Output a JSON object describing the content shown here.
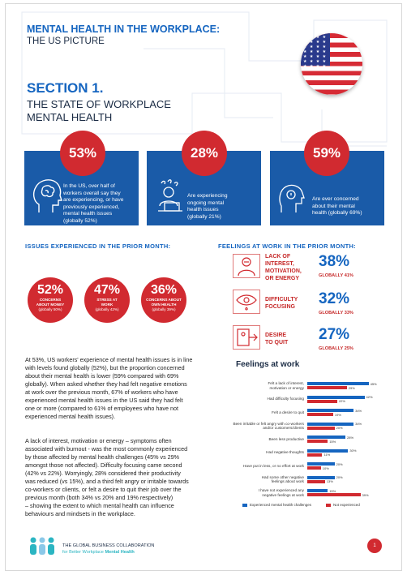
{
  "header": {
    "line1": "MENTAL HEALTH IN THE WORKPLACE:",
    "line2": "THE US PICTURE"
  },
  "section": {
    "title": "SECTION 1.",
    "subtitle_1": "THE STATE OF WORKPLACE",
    "subtitle_2": "MENTAL HEALTH"
  },
  "stats": [
    {
      "value": "53%",
      "lines": [
        "In the US, over half of",
        "workers overall say they",
        "are experiencing, or have",
        "previously experienced,",
        "mental health issues",
        "(globally 52%)"
      ]
    },
    {
      "value": "28%",
      "lines": [
        "Are experiencing",
        "ongoing mental",
        "health issues",
        "(globally 21%)"
      ]
    },
    {
      "value": "59%",
      "lines": [
        "Are ever concerned",
        "about their mental",
        "health (globally 69%)"
      ]
    }
  ],
  "issues": {
    "title": "ISSUES EXPERIENCED IN THE PRIOR MONTH:",
    "items": [
      {
        "value": "52%",
        "label_1": "CONCERNS",
        "label_2": "ABOUT MONEY",
        "global": "(globally 50%)"
      },
      {
        "value": "47%",
        "label_1": "STRESS AT",
        "label_2": "WORK",
        "global": "(globally 42%)"
      },
      {
        "value": "36%",
        "label_1": "CONCERNS ABOUT",
        "label_2": "OWN HEALTH",
        "global": "(globally 39%)"
      }
    ]
  },
  "feelings": {
    "title": "FEELINGS AT WORK IN THE PRIOR MONTH:",
    "items": [
      {
        "lines": [
          "LACK OF",
          "INTEREST,",
          "MOTIVATION,",
          "OR ENERGY"
        ],
        "value": "38%",
        "global": "GLOBALLY 41%",
        "icon": "person-icon"
      },
      {
        "lines": [
          "DIFFICULTY",
          "FOCUSING"
        ],
        "value": "32%",
        "global": "GLOBALLY 33%",
        "icon": "eye-icon"
      },
      {
        "lines": [
          "DESIRE",
          "TO QUIT"
        ],
        "value": "27%",
        "global": "GLOBALLY 25%",
        "icon": "quit-icon"
      }
    ]
  },
  "body": {
    "paragraph_1": [
      "At 53%, US workers' experience of mental health issues is in line",
      "with levels found globally (52%), but the proportion concerned",
      "about their mental health is lower (59% compared with 69%",
      "globally). When asked whether they had felt negative emotions",
      "at work over the previous month, 67% of workers who have",
      "experienced mental health issues in the US said they had felt",
      "one or more (compared to 61% of employees who have not",
      "experienced mental health issues)."
    ],
    "paragraph_2": [
      "A lack of interest, motivation or energy – symptoms often",
      "associated with burnout - was the most commonly experienced",
      "by those affected by mental health challenges (45% vs 29%",
      "amongst those not affected). Difficulty focusing came second",
      "(42% vs 22%). Worryingly, 28% considered their productivity",
      "was reduced (vs 15%), and a third felt angry or irritable towards",
      "co-workers or clients, or felt a desire to quit their job over the",
      "previous month (both 34% vs 20% and 19% respectively)",
      "– showing the extent to which mental health can influence",
      "behaviours and mindsets in the workplace."
    ]
  },
  "chart_data": {
    "type": "bar",
    "title": "Feelings at work",
    "categories": [
      [
        "Felt a lack of interest,",
        "motivation or energy"
      ],
      [
        "Had difficulty focusing"
      ],
      [
        "Felt a desire to quit"
      ],
      [
        "Been irritable or felt angry with co-workers",
        "and/or customers/clients"
      ],
      [
        "Been less productive"
      ],
      [
        "Had negative thoughts"
      ],
      [
        "Have put in less, or no effort at work"
      ],
      [
        "Had some other negative",
        "feelings about work"
      ],
      [
        "I have not experienced any",
        "negative feelings at work"
      ]
    ],
    "series": [
      {
        "name": "Experienced mental health challenges",
        "color": "#1565c0",
        "values": [
          "45%",
          "42%",
          "34%",
          "34%",
          "28%",
          "30%",
          "20%",
          "20%",
          "15%"
        ]
      },
      {
        "name": "Not experienced",
        "color": "#d12a30",
        "values": [
          "29%",
          "22%",
          "19%",
          "20%",
          "15%",
          "11%",
          "10%",
          "13%",
          "39%"
        ]
      }
    ],
    "xlim": [
      0,
      50
    ],
    "legend": "bottom"
  },
  "footer": {
    "org_1": "THE GLOBAL BUSINESS COLLABORATION",
    "org_2a": "for Better Workplace ",
    "org_2b": "Mental Health",
    "page": "1"
  }
}
